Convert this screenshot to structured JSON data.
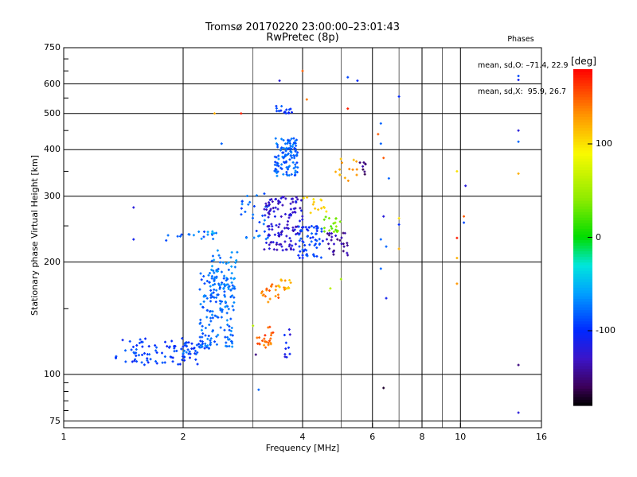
{
  "header": {
    "title_line1": "Tromsø 20170220 23:00:00–23:01:43",
    "title_line2": "RwPretec (8p)"
  },
  "phase_box": {
    "heading": "Phases",
    "line_o": "mean, sd,O: –71.4, 22.9",
    "line_x": "mean, sd,X:  95.9, 26.7"
  },
  "chart_data": {
    "type": "scatter",
    "title": "Tromsø 20170220 23:00:00–23:01:43",
    "subtitle": "RwPretec (8p)",
    "xlabel": "Frequency [MHz]",
    "ylabel": "Stationary phase Virtual Height [km]",
    "x_scale": "log",
    "y_scale": "log",
    "xlim": [
      1,
      16
    ],
    "ylim": [
      72,
      750
    ],
    "x_ticks": [
      1,
      2,
      4,
      6,
      8,
      10,
      16
    ],
    "x_tick_labels": [
      "1",
      "2",
      "4",
      "6",
      "8",
      "10",
      "16"
    ],
    "x_minor_ticks": [
      3,
      5,
      7,
      9
    ],
    "y_ticks": [
      75,
      100,
      200,
      300,
      400,
      500,
      600,
      750
    ],
    "y_tick_labels": [
      "75",
      "100",
      "200",
      "300",
      "400",
      "500",
      "600",
      "750"
    ],
    "grid": true,
    "colorbar": {
      "label": "[deg]",
      "range": [
        -180,
        180
      ],
      "ticks": [
        100,
        0,
        -100
      ],
      "tick_labels": [
        "100",
        "0",
        "-100"
      ]
    },
    "clusters": [
      {
        "f": [
          1.35,
          2.2
        ],
        "h": [
          106,
          125
        ],
        "phase": -95,
        "n": 90
      },
      {
        "f": [
          2.0,
          2.35
        ],
        "h": [
          113,
          124
        ],
        "phase": -85,
        "n": 25
      },
      {
        "f": [
          2.2,
          2.7
        ],
        "h": [
          118,
          190
        ],
        "phase": -78,
        "n": 140
      },
      {
        "f": [
          2.35,
          2.75
        ],
        "h": [
          160,
          215
        ],
        "phase": -72,
        "n": 50
      },
      {
        "f": [
          1.75,
          2.4
        ],
        "h": [
          228,
          242
        ],
        "phase": -80,
        "n": 14
      },
      {
        "f": [
          2.3,
          2.45
        ],
        "h": [
          235,
          244
        ],
        "phase": -62,
        "n": 6
      },
      {
        "f": [
          3.05,
          3.35
        ],
        "h": [
          118,
          126
        ],
        "phase": 145,
        "n": 18
      },
      {
        "f": [
          3.2,
          3.4
        ],
        "h": [
          125,
          135
        ],
        "phase": 155,
        "n": 6
      },
      {
        "f": [
          3.15,
          3.5
        ],
        "h": [
          155,
          175
        ],
        "phase": 140,
        "n": 20
      },
      {
        "f": [
          3.45,
          3.75
        ],
        "h": [
          165,
          180
        ],
        "phase": 120,
        "n": 14
      },
      {
        "f": [
          3.6,
          3.75
        ],
        "h": [
          110,
          140
        ],
        "phase": -110,
        "n": 10
      },
      {
        "f": [
          2.8,
          3.3
        ],
        "h": [
          230,
          310
        ],
        "phase": -80,
        "n": 30
      },
      {
        "f": [
          3.2,
          4.0
        ],
        "h": [
          215,
          300
        ],
        "phase": -125,
        "n": 130
      },
      {
        "f": [
          3.4,
          3.9
        ],
        "h": [
          340,
          430
        ],
        "phase": -80,
        "n": 110
      },
      {
        "f": [
          3.4,
          3.8
        ],
        "h": [
          500,
          530
        ],
        "phase": -95,
        "n": 16
      },
      {
        "f": [
          3.9,
          4.5
        ],
        "h": [
          205,
          250
        ],
        "phase": -95,
        "n": 60
      },
      {
        "f": [
          4.0,
          4.6
        ],
        "h": [
          270,
          300
        ],
        "phase": 110,
        "n": 14
      },
      {
        "f": [
          4.5,
          5.0
        ],
        "h": [
          240,
          265
        ],
        "phase": 30,
        "n": 20
      },
      {
        "f": [
          4.6,
          5.2
        ],
        "h": [
          205,
          240
        ],
        "phase": -140,
        "n": 28
      },
      {
        "f": [
          4.8,
          5.5
        ],
        "h": [
          330,
          380
        ],
        "phase": 120,
        "n": 14
      },
      {
        "f": [
          5.5,
          5.8
        ],
        "h": [
          340,
          370
        ],
        "phase": -150,
        "n": 8
      }
    ],
    "scatter_points": [
      {
        "f": 1.5,
        "h": 280,
        "phase": -120
      },
      {
        "f": 1.5,
        "h": 230,
        "phase": -110
      },
      {
        "f": 3.5,
        "h": 612,
        "phase": -120
      },
      {
        "f": 4.0,
        "h": 650,
        "phase": 150
      },
      {
        "f": 5.2,
        "h": 625,
        "phase": -90
      },
      {
        "f": 5.5,
        "h": 612,
        "phase": -100
      },
      {
        "f": 4.1,
        "h": 545,
        "phase": 140
      },
      {
        "f": 5.2,
        "h": 515,
        "phase": 170
      },
      {
        "f": 7.0,
        "h": 555,
        "phase": -100
      },
      {
        "f": 2.8,
        "h": 500,
        "phase": 170
      },
      {
        "f": 2.4,
        "h": 500,
        "phase": 120
      },
      {
        "f": 6.3,
        "h": 470,
        "phase": -80
      },
      {
        "f": 6.2,
        "h": 440,
        "phase": 150
      },
      {
        "f": 6.3,
        "h": 415,
        "phase": -80
      },
      {
        "f": 6.4,
        "h": 380,
        "phase": 150
      },
      {
        "f": 2.5,
        "h": 415,
        "phase": -80
      },
      {
        "f": 6.6,
        "h": 335,
        "phase": -80
      },
      {
        "f": 6.4,
        "h": 265,
        "phase": -120
      },
      {
        "f": 7.0,
        "h": 262,
        "phase": 100
      },
      {
        "f": 7.0,
        "h": 252,
        "phase": -100
      },
      {
        "f": 6.3,
        "h": 230,
        "phase": -80
      },
      {
        "f": 6.5,
        "h": 220,
        "phase": -80
      },
      {
        "f": 7.0,
        "h": 217,
        "phase": 120
      },
      {
        "f": 6.3,
        "h": 192,
        "phase": -80
      },
      {
        "f": 6.5,
        "h": 160,
        "phase": -110
      },
      {
        "f": 6.4,
        "h": 92,
        "phase": -170
      },
      {
        "f": 3.1,
        "h": 91,
        "phase": -80
      },
      {
        "f": 9.8,
        "h": 350,
        "phase": 100
      },
      {
        "f": 10.3,
        "h": 320,
        "phase": -120
      },
      {
        "f": 10.2,
        "h": 265,
        "phase": 150
      },
      {
        "f": 10.2,
        "h": 255,
        "phase": -90
      },
      {
        "f": 9.8,
        "h": 232,
        "phase": 170
      },
      {
        "f": 9.8,
        "h": 205,
        "phase": 120
      },
      {
        "f": 9.8,
        "h": 175,
        "phase": 130
      },
      {
        "f": 14.0,
        "h": 630,
        "phase": -90
      },
      {
        "f": 14.0,
        "h": 615,
        "phase": -110
      },
      {
        "f": 14.0,
        "h": 450,
        "phase": -120
      },
      {
        "f": 14.0,
        "h": 420,
        "phase": -80
      },
      {
        "f": 14.0,
        "h": 345,
        "phase": 120
      },
      {
        "f": 14.0,
        "h": 106,
        "phase": -150
      },
      {
        "f": 14.0,
        "h": 79,
        "phase": -120
      },
      {
        "f": 4.7,
        "h": 170,
        "phase": 60
      },
      {
        "f": 5.0,
        "h": 180,
        "phase": 50
      },
      {
        "f": 3.0,
        "h": 135,
        "phase": 60
      },
      {
        "f": 3.05,
        "h": 113,
        "phase": -150
      }
    ]
  }
}
